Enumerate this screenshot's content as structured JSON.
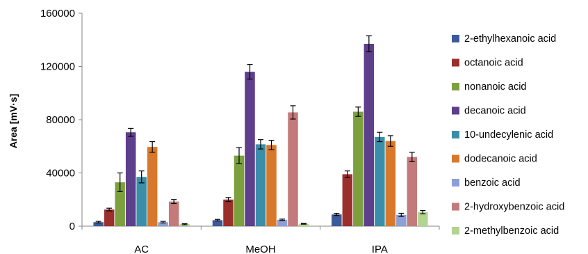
{
  "chart_data": {
    "type": "bar",
    "title": "",
    "xlabel": "",
    "ylabel": "Area [mV·s]",
    "ylim": [
      0,
      160000
    ],
    "yticks": [
      0,
      40000,
      80000,
      120000,
      160000
    ],
    "ytick_labels": [
      "0",
      "40000",
      "80000",
      "120000",
      "160000"
    ],
    "grid": false,
    "legend_position": "right",
    "categories": [
      "AC",
      "MeOH",
      "IPA"
    ],
    "series": [
      {
        "name": "2-ethylhexanoic acid",
        "color": "#3c5a9a",
        "values": [
          3000,
          4500,
          8800
        ],
        "errors": [
          600,
          600,
          800
        ]
      },
      {
        "name": "octanoic acid",
        "color": "#9b2f2c",
        "values": [
          12500,
          20000,
          39000
        ],
        "errors": [
          1000,
          1500,
          2500
        ]
      },
      {
        "name": "nonanoic acid",
        "color": "#7ca03e",
        "values": [
          33000,
          53000,
          86000
        ],
        "errors": [
          7000,
          6000,
          3500
        ]
      },
      {
        "name": "decanoic acid",
        "color": "#5e3f8c",
        "values": [
          70500,
          116000,
          137000
        ],
        "errors": [
          3000,
          5500,
          6000
        ]
      },
      {
        "name": "10-undecylenic acid",
        "color": "#3b8ea8",
        "values": [
          37000,
          61500,
          67000
        ],
        "errors": [
          4500,
          3500,
          3500
        ]
      },
      {
        "name": "dodecanoic acid",
        "color": "#d9782a",
        "values": [
          59500,
          61000,
          64000
        ],
        "errors": [
          4000,
          3500,
          4000
        ]
      },
      {
        "name": "benzoic acid",
        "color": "#8c9fd6",
        "values": [
          3000,
          4800,
          8500
        ],
        "errors": [
          600,
          500,
          1200
        ]
      },
      {
        "name": "2-hydroxybenzoic acid",
        "color": "#c47a7a",
        "values": [
          18500,
          85500,
          52000
        ],
        "errors": [
          1500,
          5000,
          3500
        ]
      },
      {
        "name": "2-methylbenzoic acid",
        "color": "#b2d490",
        "values": [
          1500,
          1800,
          10500
        ],
        "errors": [
          400,
          300,
          1200
        ]
      }
    ]
  }
}
